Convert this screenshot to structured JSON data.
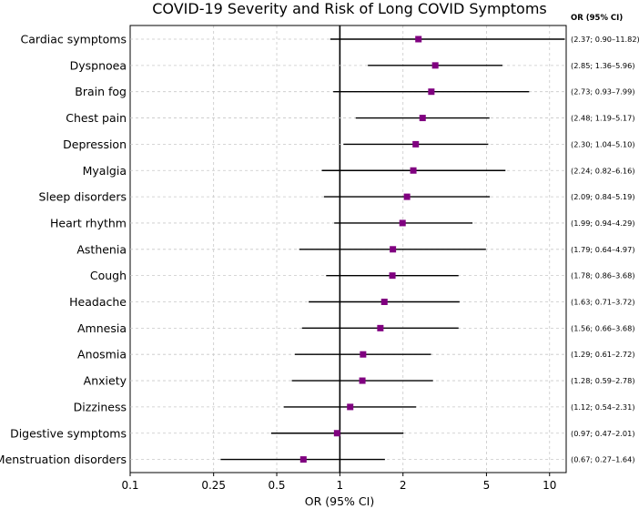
{
  "chart_data": {
    "type": "forest",
    "title": "COVID-19 Severity and Risk of Long COVID Symptoms",
    "xlabel": "OR (95% CI)",
    "xscale": "log",
    "xlim": [
      0.1,
      12
    ],
    "reference_line": 1,
    "xticks": [
      {
        "value": 0.1,
        "label": "0.1"
      },
      {
        "value": 0.25,
        "label": "0.25"
      },
      {
        "value": 0.5,
        "label": "0.5"
      },
      {
        "value": 1,
        "label": "1"
      },
      {
        "value": 2,
        "label": "2"
      },
      {
        "value": 5,
        "label": "5"
      },
      {
        "value": 10,
        "label": "10"
      }
    ],
    "ci_column_header": "OR (95% CI)",
    "marker_color": "#800080",
    "rows": [
      {
        "label": "Cardiac symptoms",
        "or": 2.37,
        "lo": 0.9,
        "hi": 11.82,
        "text": "(2.37; 0.90–11.82)"
      },
      {
        "label": "Dyspnoea",
        "or": 2.85,
        "lo": 1.36,
        "hi": 5.96,
        "text": "(2.85; 1.36–5.96)"
      },
      {
        "label": "Brain fog",
        "or": 2.73,
        "lo": 0.93,
        "hi": 7.99,
        "text": "(2.73; 0.93–7.99)"
      },
      {
        "label": "Chest pain",
        "or": 2.48,
        "lo": 1.19,
        "hi": 5.17,
        "text": "(2.48; 1.19–5.17)"
      },
      {
        "label": "Depression",
        "or": 2.3,
        "lo": 1.04,
        "hi": 5.1,
        "text": "(2.30; 1.04–5.10)"
      },
      {
        "label": "Myalgia",
        "or": 2.24,
        "lo": 0.82,
        "hi": 6.16,
        "text": "(2.24; 0.82–6.16)"
      },
      {
        "label": "Sleep disorders",
        "or": 2.09,
        "lo": 0.84,
        "hi": 5.19,
        "text": "(2.09; 0.84–5.19)"
      },
      {
        "label": "Heart rhythm",
        "or": 1.99,
        "lo": 0.94,
        "hi": 4.29,
        "text": "(1.99; 0.94–4.29)"
      },
      {
        "label": "Asthenia",
        "or": 1.79,
        "lo": 0.64,
        "hi": 4.97,
        "text": "(1.79; 0.64–4.97)"
      },
      {
        "label": "Cough",
        "or": 1.78,
        "lo": 0.86,
        "hi": 3.68,
        "text": "(1.78; 0.86–3.68)"
      },
      {
        "label": "Headache",
        "or": 1.63,
        "lo": 0.71,
        "hi": 3.72,
        "text": "(1.63; 0.71–3.72)"
      },
      {
        "label": "Amnesia",
        "or": 1.56,
        "lo": 0.66,
        "hi": 3.68,
        "text": "(1.56; 0.66–3.68)"
      },
      {
        "label": "Anosmia",
        "or": 1.29,
        "lo": 0.61,
        "hi": 2.72,
        "text": "(1.29; 0.61–2.72)"
      },
      {
        "label": "Anxiety",
        "or": 1.28,
        "lo": 0.59,
        "hi": 2.78,
        "text": "(1.28; 0.59–2.78)"
      },
      {
        "label": "Dizziness",
        "or": 1.12,
        "lo": 0.54,
        "hi": 2.31,
        "text": "(1.12; 0.54–2.31)"
      },
      {
        "label": "Digestive symptoms",
        "or": 0.97,
        "lo": 0.47,
        "hi": 2.01,
        "text": "(0.97; 0.47–2.01)"
      },
      {
        "label": "Menstruation disorders",
        "or": 0.67,
        "lo": 0.27,
        "hi": 1.64,
        "text": "(0.67; 0.27–1.64)"
      }
    ]
  }
}
